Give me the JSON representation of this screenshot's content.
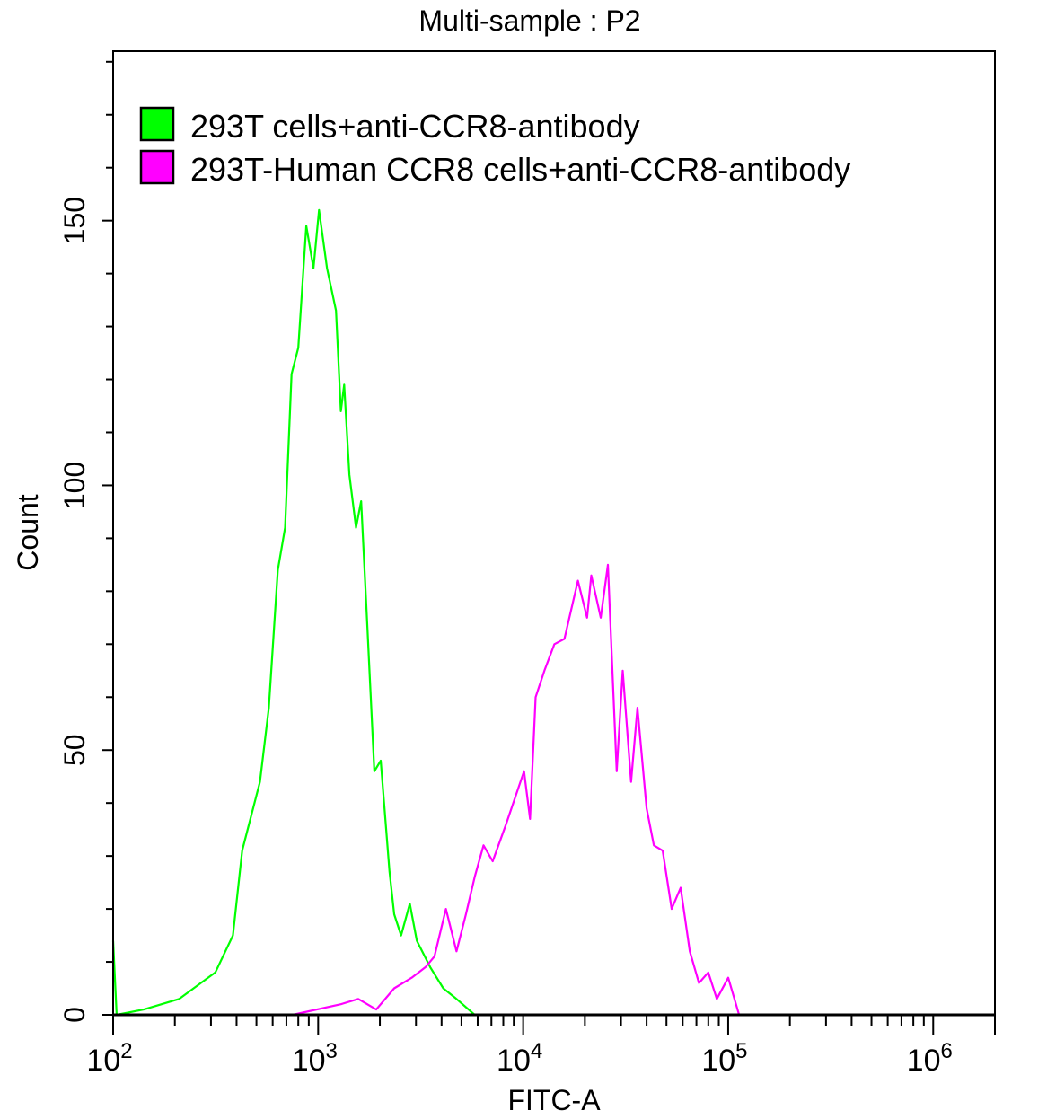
{
  "chart_data": {
    "type": "line",
    "title": "Multi-sample : P2",
    "xlabel": "FITC-A",
    "ylabel": "Count",
    "x_scale": "log",
    "xlim": [
      100,
      2000000
    ],
    "ylim": [
      0,
      182
    ],
    "x_ticks": [
      {
        "value": 100,
        "base": "10",
        "exp": "2"
      },
      {
        "value": 1000,
        "base": "10",
        "exp": "3"
      },
      {
        "value": 10000,
        "base": "10",
        "exp": "4"
      },
      {
        "value": 100000,
        "base": "10",
        "exp": "5"
      },
      {
        "value": 1000000,
        "base": "10",
        "exp": "6"
      }
    ],
    "y_ticks": [
      0,
      50,
      100,
      150
    ],
    "y_minor_step": 10,
    "grid": false,
    "legend_position": "top-left",
    "series": [
      {
        "name": "293T cells+anti-CCR8-antibody",
        "color": "#00ff00",
        "points": [
          [
            100,
            14
          ],
          [
            104,
            0
          ],
          [
            141,
            1
          ],
          [
            210,
            3
          ],
          [
            315,
            8
          ],
          [
            384,
            15
          ],
          [
            426,
            31
          ],
          [
            520,
            44
          ],
          [
            575,
            58
          ],
          [
            636,
            84
          ],
          [
            690,
            92
          ],
          [
            742,
            121
          ],
          [
            800,
            126
          ],
          [
            875,
            149
          ],
          [
            949,
            141
          ],
          [
            1010,
            152
          ],
          [
            1105,
            141
          ],
          [
            1222,
            133
          ],
          [
            1290,
            114
          ],
          [
            1340,
            119
          ],
          [
            1420,
            102
          ],
          [
            1530,
            92
          ],
          [
            1620,
            97
          ],
          [
            1740,
            73
          ],
          [
            1880,
            46
          ],
          [
            2020,
            48
          ],
          [
            2230,
            27
          ],
          [
            2350,
            19
          ],
          [
            2540,
            15
          ],
          [
            2800,
            21
          ],
          [
            3030,
            14
          ],
          [
            3520,
            9
          ],
          [
            4080,
            5
          ],
          [
            4730,
            3
          ],
          [
            5800,
            0
          ],
          [
            32100,
            0
          ]
        ]
      },
      {
        "name": "293T-Human CCR8 cells+anti-CCR8-antibody",
        "color": "#ff00ff",
        "points": [
          [
            750,
            0
          ],
          [
            1290,
            2
          ],
          [
            1570,
            3
          ],
          [
            1920,
            1
          ],
          [
            2350,
            5
          ],
          [
            2860,
            7
          ],
          [
            3340,
            9
          ],
          [
            3690,
            11
          ],
          [
            4200,
            20
          ],
          [
            4730,
            12
          ],
          [
            5260,
            19
          ],
          [
            5800,
            26
          ],
          [
            6410,
            32
          ],
          [
            7100,
            29
          ],
          [
            8250,
            36
          ],
          [
            10100,
            46
          ],
          [
            10800,
            37
          ],
          [
            11500,
            60
          ],
          [
            12700,
            65
          ],
          [
            14200,
            70
          ],
          [
            15900,
            71
          ],
          [
            18500,
            82
          ],
          [
            20500,
            75
          ],
          [
            21500,
            83
          ],
          [
            23900,
            75
          ],
          [
            25900,
            85
          ],
          [
            28600,
            46
          ],
          [
            30600,
            65
          ],
          [
            33600,
            44
          ],
          [
            36100,
            58
          ],
          [
            40000,
            39
          ],
          [
            43400,
            32
          ],
          [
            47900,
            31
          ],
          [
            53000,
            20
          ],
          [
            58600,
            24
          ],
          [
            65000,
            12
          ],
          [
            72000,
            6
          ],
          [
            80000,
            8
          ],
          [
            88000,
            3
          ],
          [
            100000,
            7
          ],
          [
            113000,
            0
          ],
          [
            160000,
            0
          ]
        ]
      }
    ]
  }
}
